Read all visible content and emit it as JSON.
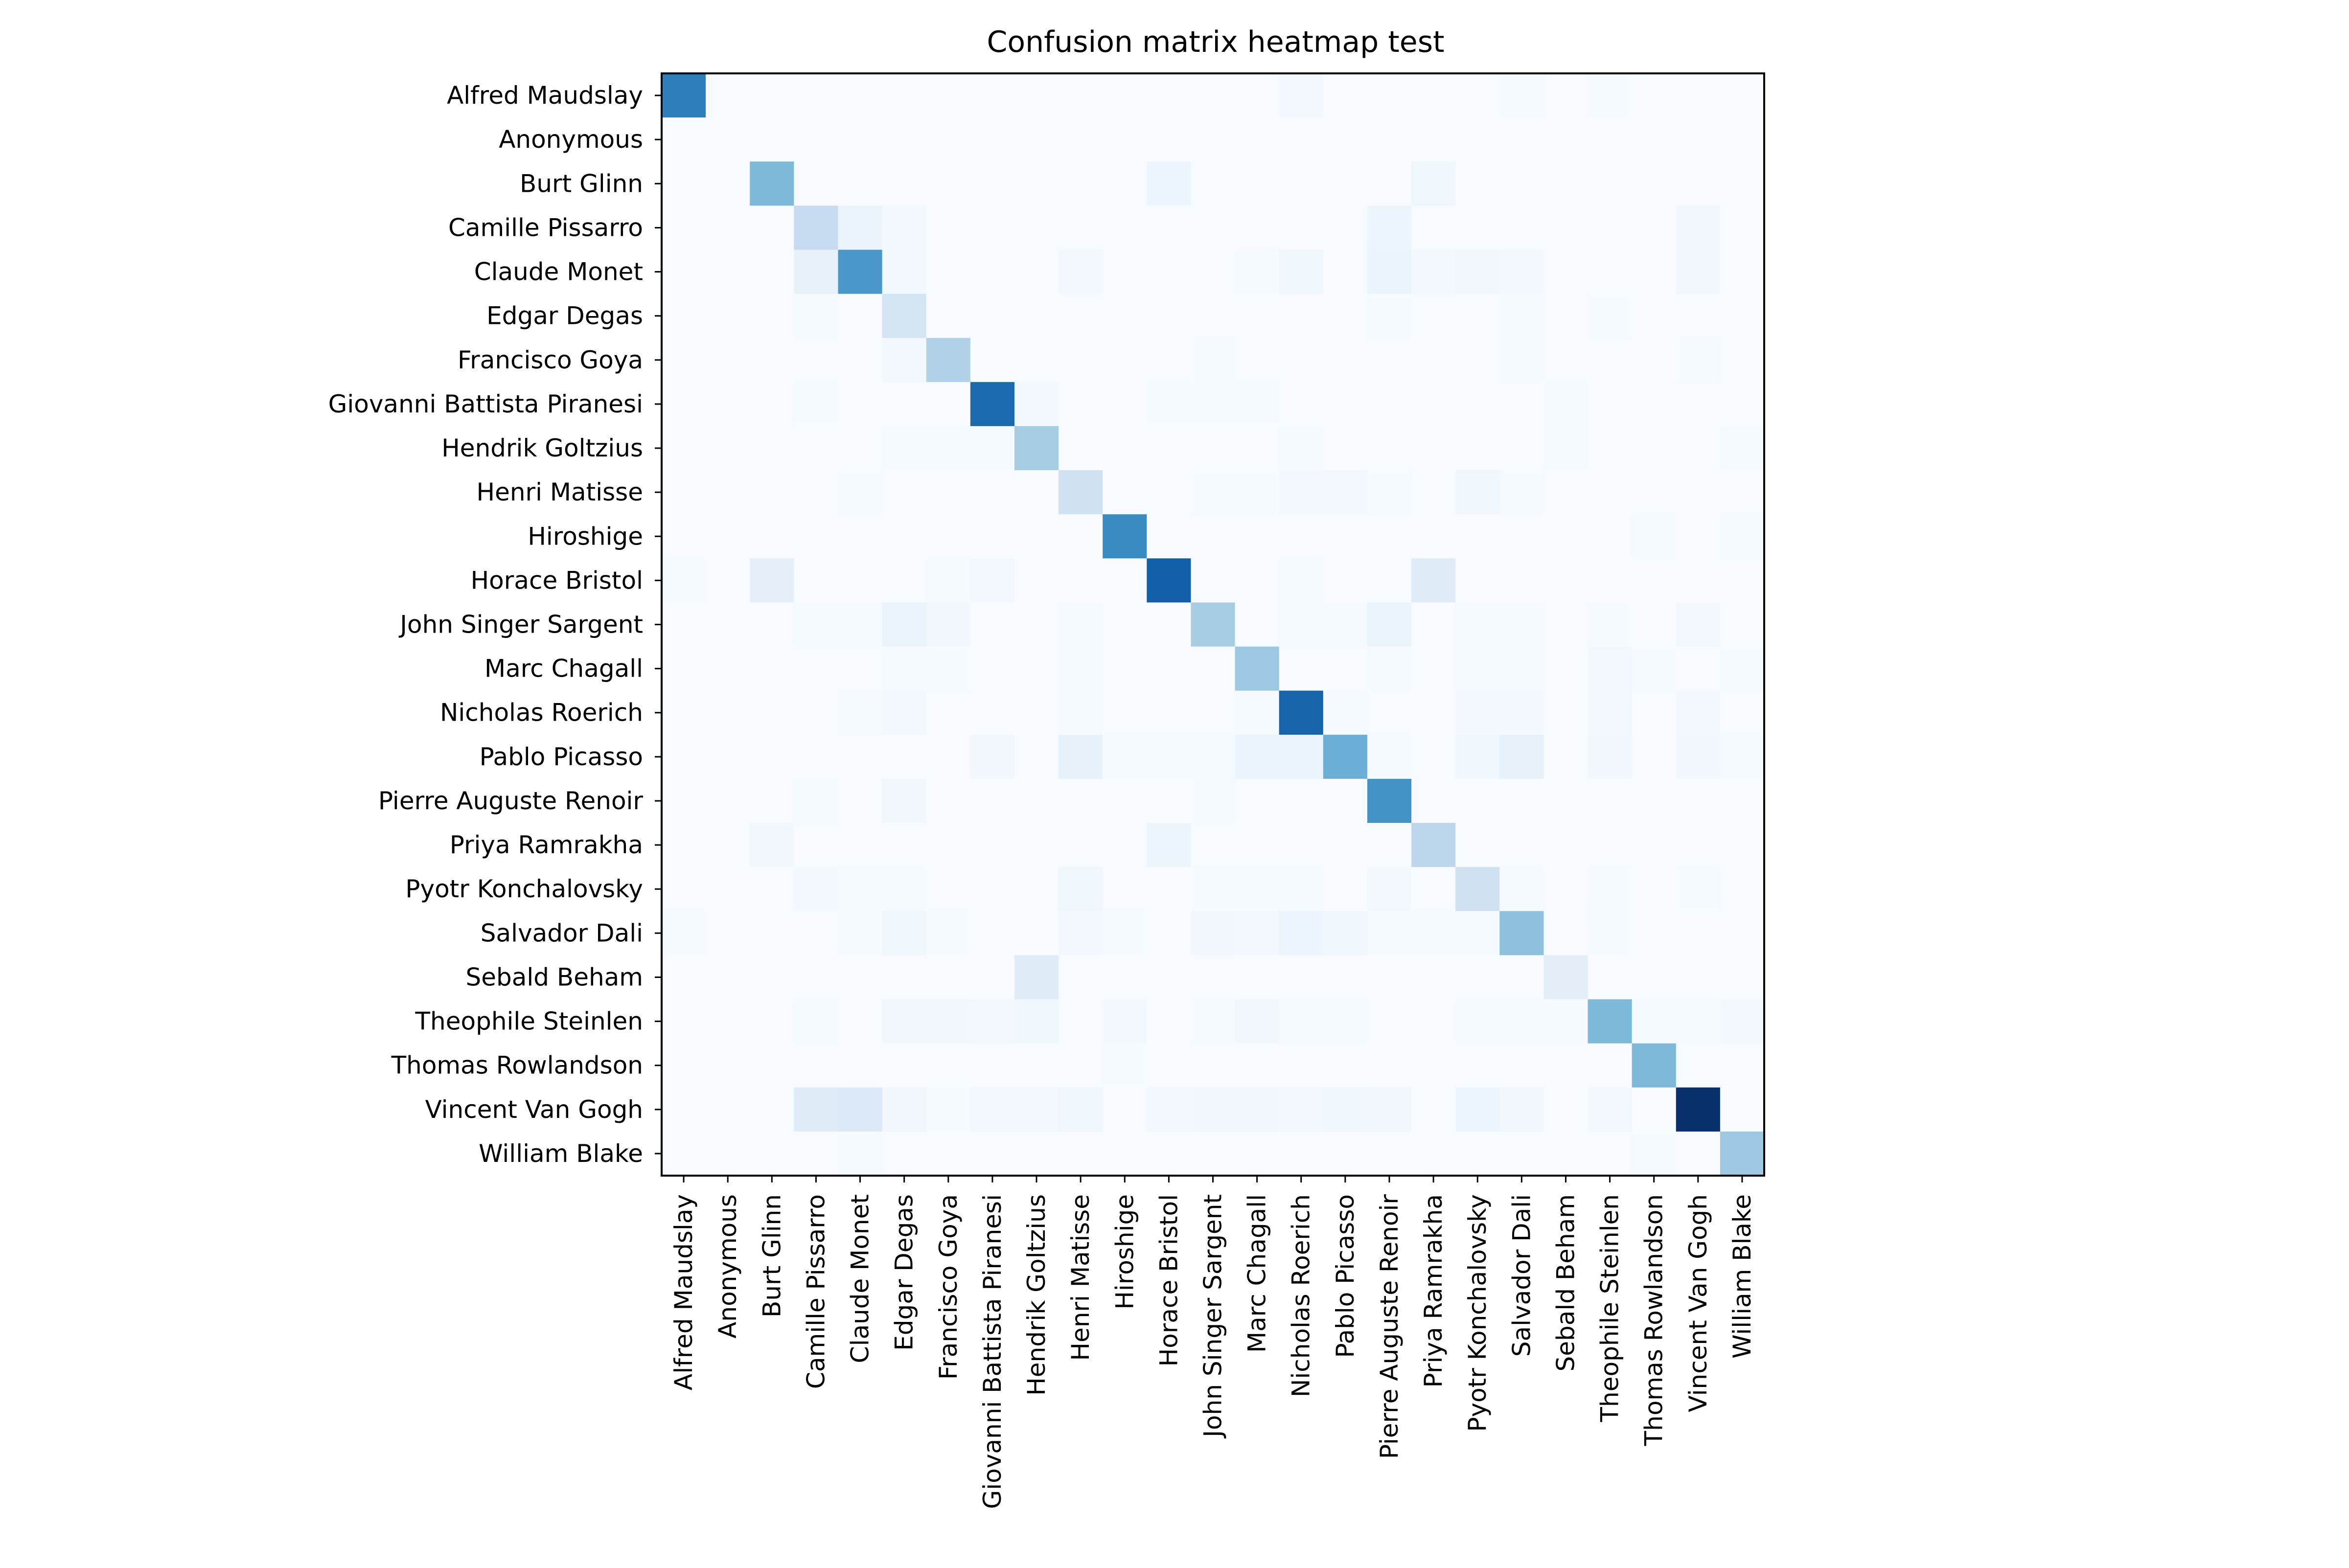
{
  "chart_data": {
    "type": "heatmap",
    "title": "Confusion matrix heatmap test",
    "xlabel": "",
    "ylabel": "",
    "colormap": "Blues",
    "colors": {
      "low": "#f7fbff",
      "high": "#08306b",
      "frame": "#000000",
      "background": "#ffffff"
    },
    "categories": [
      "Alfred Maudslay",
      "Anonymous",
      "Burt Glinn",
      "Camille Pissarro",
      "Claude Monet",
      "Edgar Degas",
      "Francisco Goya",
      "Giovanni Battista Piranesi",
      "Hendrik Goltzius",
      "Henri Matisse",
      "Hiroshige",
      "Horace Bristol",
      "John Singer Sargent",
      "Marc Chagall",
      "Nicholas Roerich",
      "Pablo Picasso",
      "Pierre Auguste Renoir",
      "Priya Ramrakha",
      "Pyotr Konchalovsky",
      "Salvador Dali",
      "Sebald Beham",
      "Theophile Steinlen",
      "Thomas Rowlandson",
      "Vincent Van Gogh",
      "William Blake"
    ],
    "value_range": [
      0,
      1
    ],
    "matrix": [
      [
        0.7,
        0,
        0,
        0,
        0,
        0,
        0,
        0,
        0,
        0,
        0,
        0,
        0,
        0,
        0.02,
        0,
        0,
        0,
        0,
        0.01,
        0,
        0.01,
        0,
        0,
        0
      ],
      [
        0,
        0,
        0,
        0,
        0,
        0,
        0,
        0,
        0,
        0,
        0,
        0,
        0,
        0,
        0,
        0,
        0,
        0,
        0,
        0,
        0,
        0,
        0,
        0,
        0
      ],
      [
        0,
        0,
        0.45,
        0,
        0,
        0,
        0,
        0,
        0,
        0,
        0,
        0.05,
        0,
        0,
        0,
        0,
        0,
        0.04,
        0,
        0,
        0,
        0,
        0,
        0,
        0
      ],
      [
        0,
        0,
        0,
        0.25,
        0.06,
        0.02,
        0,
        0,
        0,
        0,
        0,
        0,
        0,
        0,
        0,
        0,
        0.05,
        0,
        0,
        0,
        0,
        0,
        0,
        0.03,
        0
      ],
      [
        0,
        0,
        0,
        0.08,
        0.6,
        0.02,
        0,
        0,
        0,
        0.02,
        0,
        0,
        0,
        0.01,
        0.04,
        0,
        0.06,
        0.02,
        0.03,
        0.02,
        0,
        0,
        0,
        0.03,
        0
      ],
      [
        0,
        0,
        0,
        0.01,
        0,
        0.18,
        0,
        0,
        0,
        0,
        0,
        0,
        0,
        0,
        0,
        0,
        0.01,
        0,
        0,
        0.01,
        0,
        0.01,
        0,
        0,
        0
      ],
      [
        0,
        0,
        0,
        0,
        0,
        0.02,
        0.32,
        0,
        0,
        0,
        0,
        0,
        0.01,
        0,
        0,
        0,
        0,
        0,
        0,
        0.01,
        0,
        0,
        0,
        0.01,
        0
      ],
      [
        0,
        0,
        0,
        0.01,
        0,
        0,
        0,
        0.78,
        0.02,
        0,
        0,
        0.01,
        0.01,
        0.01,
        0,
        0,
        0,
        0,
        0,
        0,
        0.01,
        0,
        0,
        0,
        0
      ],
      [
        0,
        0,
        0,
        0,
        0,
        0.01,
        0.01,
        0.01,
        0.35,
        0,
        0,
        0,
        0,
        0,
        0.01,
        0,
        0,
        0,
        0,
        0,
        0.01,
        0,
        0,
        0,
        0.01
      ],
      [
        0,
        0,
        0,
        0,
        0.01,
        0,
        0,
        0,
        0,
        0.2,
        0,
        0,
        0.01,
        0.01,
        0.02,
        0.02,
        0.01,
        0,
        0.04,
        0.01,
        0,
        0,
        0,
        0,
        0
      ],
      [
        0,
        0,
        0,
        0,
        0,
        0,
        0,
        0,
        0,
        0,
        0.65,
        0,
        0,
        0,
        0,
        0,
        0,
        0,
        0,
        0,
        0,
        0,
        0.01,
        0,
        0.01
      ],
      [
        0.01,
        0,
        0.09,
        0,
        0,
        0,
        0.01,
        0.02,
        0,
        0,
        0,
        0.82,
        0,
        0,
        0.01,
        0,
        0,
        0.12,
        0,
        0,
        0,
        0,
        0,
        0,
        0
      ],
      [
        0,
        0,
        0,
        0.01,
        0.01,
        0.06,
        0.03,
        0,
        0,
        0.01,
        0,
        0,
        0.35,
        0,
        0.01,
        0.01,
        0.06,
        0,
        0.01,
        0.01,
        0,
        0.01,
        0,
        0.02,
        0
      ],
      [
        0,
        0,
        0,
        0,
        0,
        0.01,
        0.01,
        0,
        0,
        0.01,
        0,
        0,
        0,
        0.38,
        0,
        0,
        0.01,
        0,
        0.01,
        0.01,
        0,
        0.02,
        0.01,
        0,
        0.01
      ],
      [
        0,
        0,
        0,
        0,
        0.01,
        0.02,
        0,
        0,
        0,
        0.01,
        0,
        0,
        0,
        0.01,
        0.8,
        0.01,
        0,
        0,
        0.02,
        0.02,
        0,
        0.02,
        0,
        0.02,
        0
      ],
      [
        0,
        0,
        0,
        0,
        0,
        0,
        0,
        0.03,
        0,
        0.08,
        0.01,
        0.01,
        0.01,
        0.06,
        0.06,
        0.5,
        0.01,
        0,
        0.04,
        0.08,
        0,
        0.03,
        0,
        0.03,
        0.01
      ],
      [
        0,
        0,
        0,
        0.01,
        0,
        0.03,
        0,
        0,
        0,
        0,
        0,
        0,
        0.01,
        0,
        0,
        0,
        0.62,
        0,
        0,
        0,
        0,
        0,
        0,
        0,
        0
      ],
      [
        0,
        0,
        0.03,
        0,
        0,
        0,
        0,
        0,
        0,
        0,
        0,
        0.05,
        0,
        0,
        0,
        0,
        0,
        0.28,
        0,
        0,
        0,
        0,
        0,
        0,
        0
      ],
      [
        0,
        0,
        0,
        0.02,
        0.01,
        0.01,
        0,
        0,
        0,
        0.04,
        0,
        0,
        0.01,
        0.01,
        0.01,
        0,
        0.02,
        0,
        0.2,
        0.01,
        0,
        0.01,
        0,
        0.01,
        0
      ],
      [
        0.01,
        0,
        0,
        0,
        0.01,
        0.04,
        0.01,
        0,
        0,
        0.02,
        0.01,
        0,
        0.03,
        0.02,
        0.05,
        0.04,
        0.01,
        0.01,
        0.01,
        0.42,
        0,
        0.01,
        0,
        0,
        0
      ],
      [
        0,
        0,
        0,
        0,
        0,
        0,
        0,
        0,
        0.12,
        0,
        0,
        0,
        0,
        0,
        0,
        0,
        0,
        0,
        0,
        0,
        0.1,
        0,
        0,
        0,
        0
      ],
      [
        0,
        0,
        0,
        0.01,
        0,
        0.03,
        0.03,
        0.02,
        0.04,
        0,
        0.02,
        0,
        0.01,
        0.03,
        0.01,
        0.01,
        0,
        0,
        0.01,
        0.01,
        0.01,
        0.45,
        0.01,
        0.01,
        0.02
      ],
      [
        0,
        0,
        0,
        0,
        0,
        0,
        0,
        0,
        0,
        0,
        0.01,
        0,
        0,
        0,
        0,
        0,
        0,
        0,
        0,
        0,
        0,
        0,
        0.45,
        0,
        0
      ],
      [
        0,
        0,
        0,
        0.12,
        0.14,
        0.03,
        0.01,
        0.02,
        0.02,
        0.04,
        0,
        0.02,
        0.03,
        0.03,
        0.02,
        0.04,
        0.03,
        0,
        0.05,
        0.03,
        0,
        0.02,
        0,
        1.0,
        0
      ],
      [
        0,
        0,
        0,
        0,
        0.01,
        0,
        0,
        0,
        0,
        0,
        0,
        0,
        0,
        0,
        0,
        0,
        0,
        0,
        0,
        0,
        0,
        0,
        0.01,
        0,
        0.38
      ]
    ]
  }
}
